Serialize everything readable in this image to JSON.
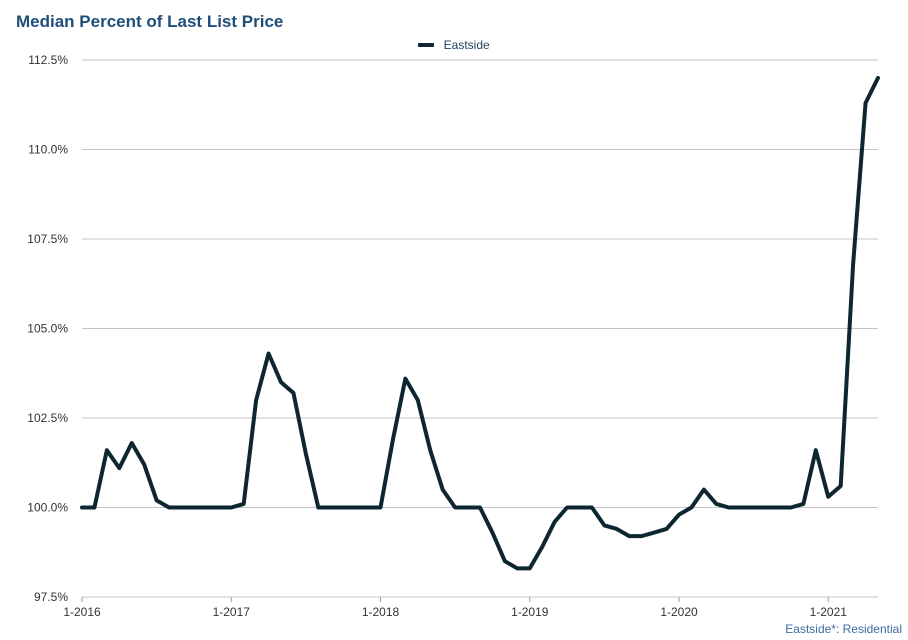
{
  "title": "Median Percent of Last List Price",
  "legend": {
    "items": [
      {
        "label": "Eastside",
        "color": "#0d2630"
      }
    ]
  },
  "footnote": "Eastside*: Residential",
  "chart_data": {
    "type": "line",
    "title": "Median Percent of Last List Price",
    "xlabel": "",
    "ylabel": "",
    "ylim": [
      97.5,
      112.5
    ],
    "y_ticks": [
      "112.5%",
      "110.0%",
      "107.5%",
      "105.0%",
      "102.5%",
      "100.0%",
      "97.5%"
    ],
    "x_ticks": [
      "1-2016",
      "1-2017",
      "1-2018",
      "1-2019",
      "1-2020",
      "1-2021"
    ],
    "x_start": "1-2016",
    "x_end": "4-2021",
    "grid": "horizontal",
    "legend_position": "top",
    "line_color": "#0d2630",
    "series": [
      {
        "name": "Eastside",
        "values": [
          100.0,
          100.0,
          101.6,
          101.1,
          101.8,
          101.2,
          100.2,
          100.0,
          100.0,
          100.0,
          100.0,
          100.0,
          100.0,
          100.1,
          103.0,
          104.3,
          103.5,
          103.2,
          101.5,
          100.0,
          100.0,
          100.0,
          100.0,
          100.0,
          100.0,
          101.9,
          103.6,
          103.0,
          101.6,
          100.5,
          100.0,
          100.0,
          100.0,
          99.3,
          98.5,
          98.3,
          98.3,
          98.9,
          99.6,
          100.0,
          100.0,
          100.0,
          99.5,
          99.4,
          99.2,
          99.2,
          99.3,
          99.4,
          99.8,
          100.0,
          100.5,
          100.1,
          100.0,
          100.0,
          100.0,
          100.0,
          100.0,
          100.0,
          100.1,
          101.6,
          100.3,
          100.6,
          106.8,
          111.3,
          112.0
        ]
      }
    ]
  }
}
